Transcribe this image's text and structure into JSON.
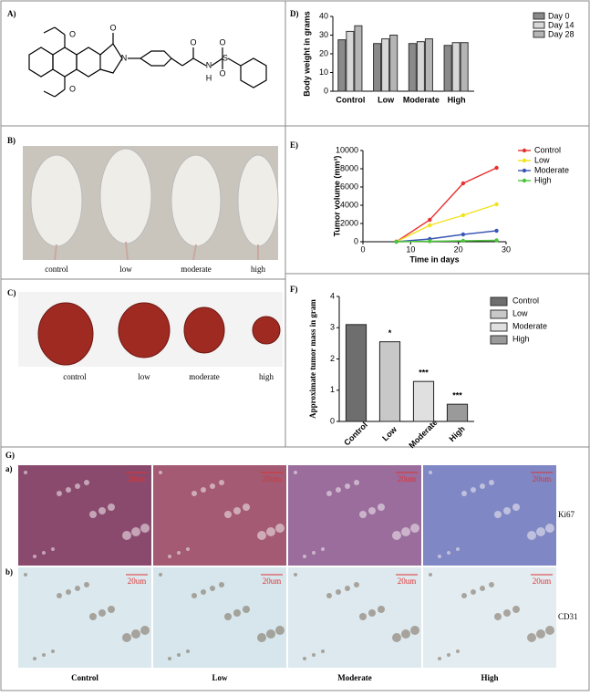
{
  "panels": {
    "a": "A)",
    "b": "B)",
    "c": "C)",
    "d": "D)",
    "e": "E)",
    "f": "F)",
    "g": "G)",
    "ga": "a)",
    "gb": "b)",
    "mice_labels": [
      "control",
      "low",
      "moderate",
      "high"
    ],
    "tumor_labels": [
      "control",
      "low",
      "moderate",
      "high"
    ],
    "histo_labels": [
      "Control",
      "Low",
      "Moderate",
      "High"
    ],
    "row_labels": [
      "Ki67",
      "CD31"
    ],
    "scale_bar": "20um",
    "atoms": [
      "O",
      "N",
      "O",
      "O",
      "N",
      "H",
      "S",
      "O",
      "O",
      "O"
    ]
  },
  "chart_data": [
    {
      "type": "bar",
      "y_label": "Body weight in grams",
      "categories": [
        "Control",
        "Low",
        "Moderate",
        "High"
      ],
      "series": [
        {
          "name": "Day 0",
          "color": "#8a8a8a",
          "values": [
            27.5,
            25.5,
            25.5,
            24.5
          ]
        },
        {
          "name": "Day 14",
          "color": "#d8d8d8",
          "values": [
            32,
            28,
            26.5,
            26
          ]
        },
        {
          "name": "Day 28",
          "color": "#b5b5b5",
          "values": [
            35,
            30,
            28,
            26
          ]
        }
      ],
      "ylim": [
        0,
        40
      ],
      "yticks": [
        0,
        10,
        20,
        30,
        40
      ],
      "legend": "upper right"
    },
    {
      "type": "line",
      "y_label": "Tumor volume (mm³)",
      "x_label": "Time in days",
      "x": [
        7,
        14,
        21,
        28
      ],
      "series": [
        {
          "name": "Control",
          "color": "#e8322f",
          "values": [
            0,
            2400,
            6400,
            8100
          ]
        },
        {
          "name": "Low",
          "color": "#f2e21b",
          "values": [
            0,
            1800,
            2900,
            4100
          ]
        },
        {
          "name": "Moderate",
          "color": "#3a55b4",
          "values": [
            0,
            300,
            800,
            1200
          ]
        },
        {
          "name": "High",
          "color": "#4cc43a",
          "values": [
            0,
            50,
            100,
            150
          ]
        }
      ],
      "xlim": [
        0,
        30
      ],
      "xticks": [
        0,
        10,
        20,
        30
      ],
      "ylim": [
        0,
        10000
      ],
      "yticks": [
        0,
        2000,
        4000,
        6000,
        8000,
        10000
      ],
      "legend": "upper right"
    },
    {
      "type": "bar",
      "y_label": "Approximate tumor mass in gram",
      "categories": [
        "Control",
        "Low",
        "Moderate",
        "High"
      ],
      "values": [
        3.1,
        2.55,
        1.28,
        0.55
      ],
      "significance": [
        null,
        "*",
        "***",
        "***"
      ],
      "colors": [
        "#6e6e6e",
        "#c8c8c8",
        "#e0e0e0",
        "#9a9a9a"
      ],
      "ylim": [
        0,
        4
      ],
      "yticks": [
        0,
        1,
        2,
        3,
        4
      ],
      "legend": "upper right"
    }
  ]
}
